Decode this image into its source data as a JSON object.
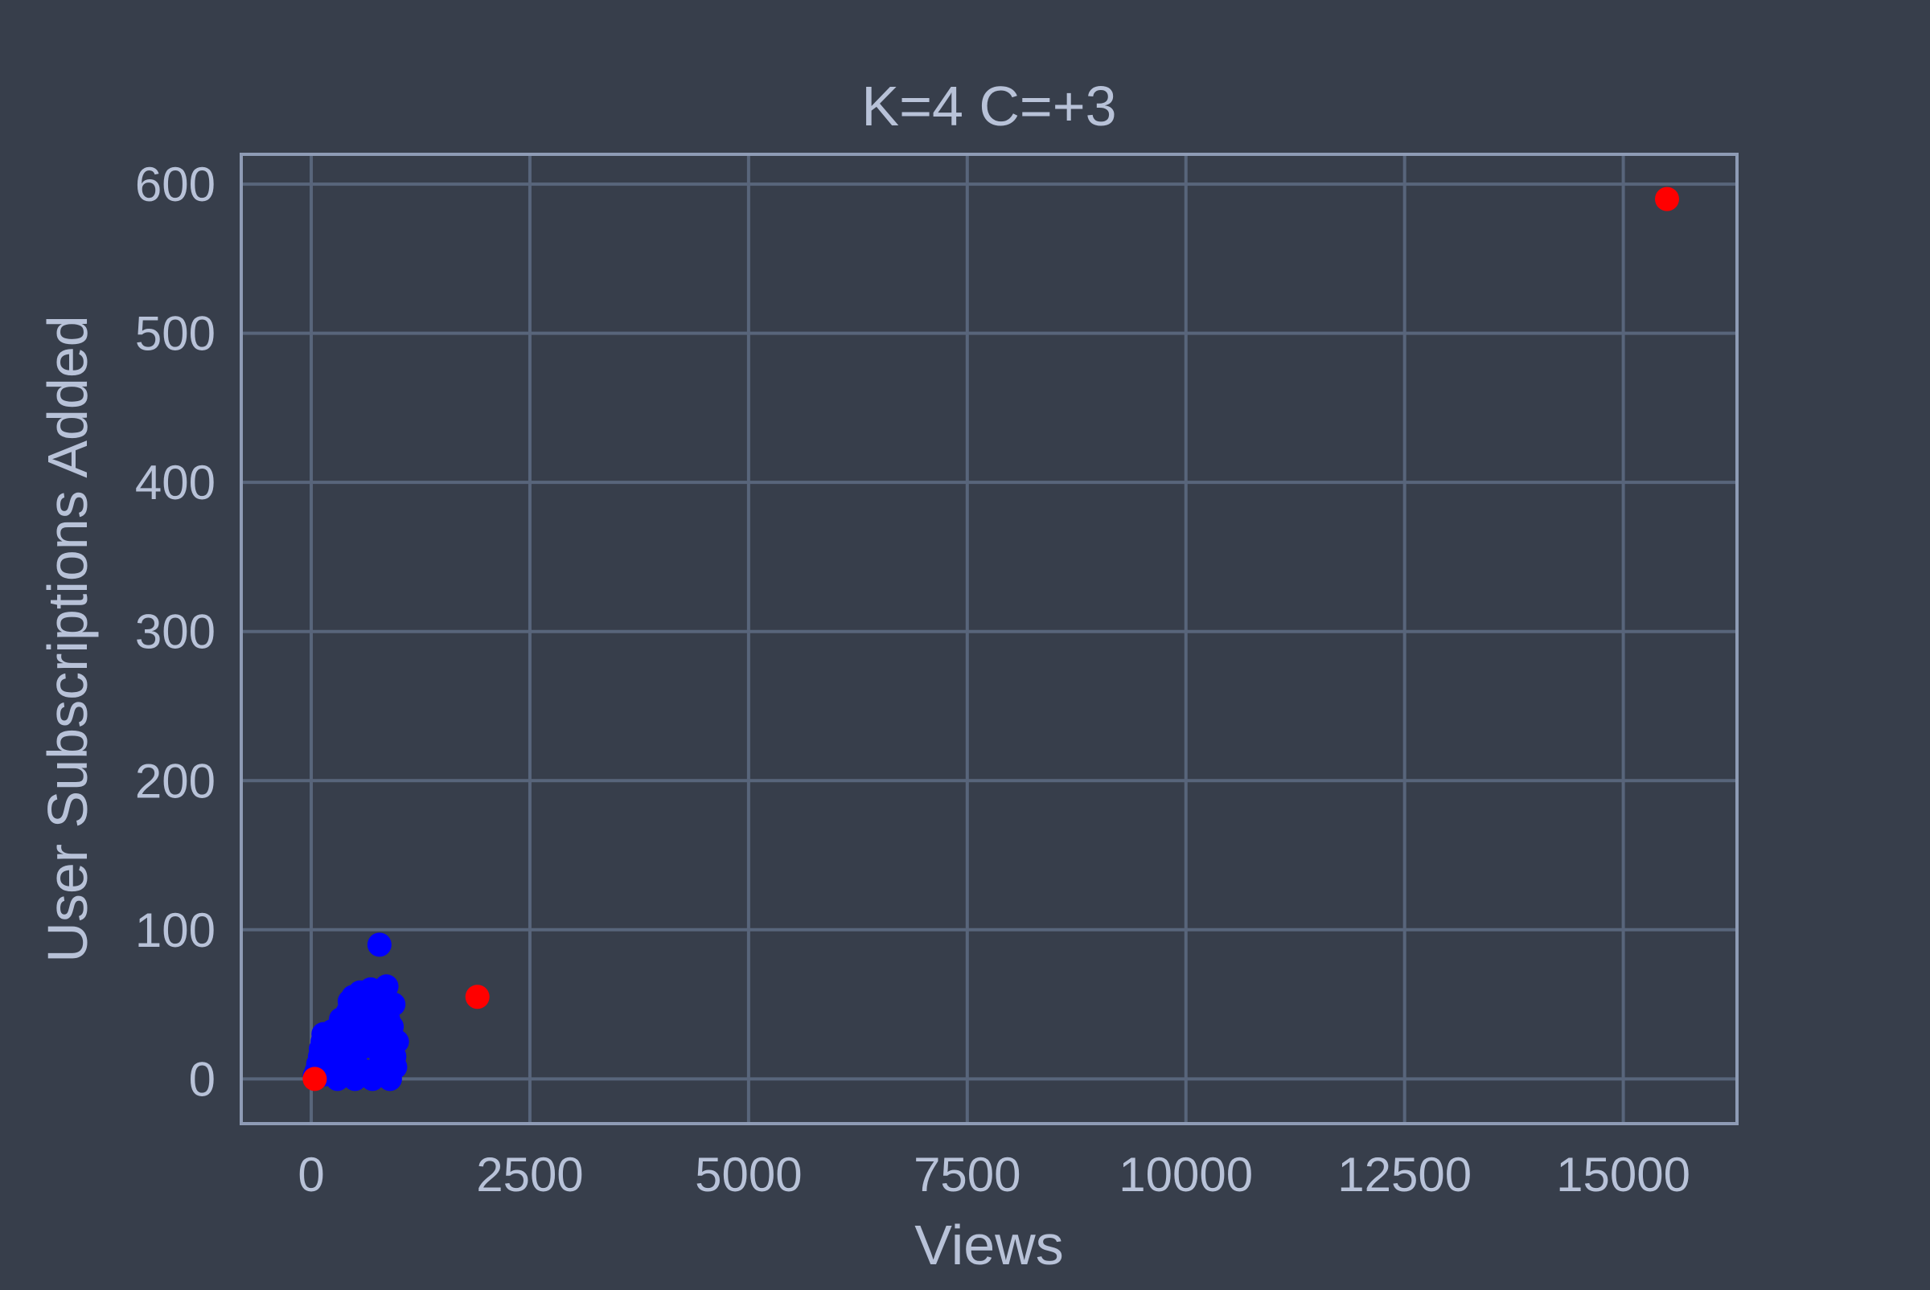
{
  "chart_data": {
    "type": "scatter",
    "title": "K=4 C=+3",
    "xlabel": "Views",
    "ylabel": "User Subscriptions Added",
    "xlim": [
      -800,
      16300
    ],
    "ylim": [
      -30,
      620
    ],
    "x_ticks": [
      0,
      2500,
      5000,
      7500,
      10000,
      12500,
      15000
    ],
    "x_tick_labels": [
      "0",
      "2500",
      "5000",
      "7500",
      "10000",
      "12500",
      "15000"
    ],
    "y_ticks": [
      0,
      100,
      200,
      300,
      400,
      500,
      600
    ],
    "y_tick_labels": [
      "0",
      "100",
      "200",
      "300",
      "400",
      "500",
      "600"
    ],
    "grid": true,
    "colors": {
      "background": "#373e4b",
      "grid": "#58657b",
      "axes_frame": "#8e9bb5",
      "text": "#b8c2d8"
    },
    "series": [
      {
        "color": "#0000ff",
        "points": [
          [
            40,
            2
          ],
          [
            60,
            5
          ],
          [
            80,
            10
          ],
          [
            100,
            15
          ],
          [
            110,
            20
          ],
          [
            120,
            8
          ],
          [
            130,
            25
          ],
          [
            140,
            30
          ],
          [
            150,
            3
          ],
          [
            160,
            12
          ],
          [
            180,
            18
          ],
          [
            200,
            22
          ],
          [
            220,
            28
          ],
          [
            240,
            32
          ],
          [
            260,
            6
          ],
          [
            280,
            14
          ],
          [
            300,
            26
          ],
          [
            320,
            35
          ],
          [
            340,
            40
          ],
          [
            350,
            2
          ],
          [
            360,
            10
          ],
          [
            380,
            20
          ],
          [
            400,
            30
          ],
          [
            420,
            45
          ],
          [
            440,
            52
          ],
          [
            460,
            38
          ],
          [
            480,
            55
          ],
          [
            500,
            15
          ],
          [
            520,
            25
          ],
          [
            540,
            48
          ],
          [
            560,
            58
          ],
          [
            580,
            33
          ],
          [
            600,
            42
          ],
          [
            620,
            5
          ],
          [
            640,
            22
          ],
          [
            660,
            50
          ],
          [
            680,
            60
          ],
          [
            700,
            36
          ],
          [
            720,
            28
          ],
          [
            740,
            52
          ],
          [
            760,
            44
          ],
          [
            780,
            90
          ],
          [
            800,
            12
          ],
          [
            820,
            30
          ],
          [
            840,
            58
          ],
          [
            860,
            62
          ],
          [
            880,
            40
          ],
          [
            900,
            20
          ],
          [
            920,
            35
          ],
          [
            940,
            50
          ],
          [
            960,
            8
          ],
          [
            980,
            25
          ],
          [
            300,
            0
          ],
          [
            500,
            0
          ],
          [
            700,
            0
          ],
          [
            900,
            0
          ],
          [
            950,
            15
          ],
          [
            850,
            45
          ],
          [
            650,
            30
          ],
          [
            450,
            10
          ]
        ]
      },
      {
        "color": "#ff0000",
        "points": [
          [
            40,
            0
          ],
          [
            1900,
            55
          ],
          [
            15500,
            590
          ]
        ]
      }
    ]
  }
}
